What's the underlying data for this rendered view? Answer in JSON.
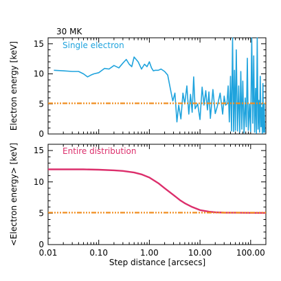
{
  "chart_data": [
    {
      "type": "line",
      "annotation": "30 MK",
      "label": "Single electron",
      "ylabel": "Electron energy [keV]",
      "xlabel": "",
      "xscale": "log",
      "xlim": [
        0.01,
        200
      ],
      "ylim": [
        0,
        16
      ],
      "yticks": [
        0,
        5,
        10,
        15
      ],
      "ytick_labels": [
        "0",
        "5",
        "10",
        "15"
      ],
      "series": [
        {
          "style": "solid",
          "color": "#1fa3dd",
          "x": [
            0.013,
            0.02,
            0.03,
            0.04,
            0.05,
            0.06,
            0.07,
            0.08,
            0.1,
            0.13,
            0.16,
            0.2,
            0.25,
            0.3,
            0.35,
            0.4,
            0.45,
            0.5,
            0.6,
            0.7,
            0.8,
            0.9,
            1.0,
            1.1,
            1.2,
            1.3,
            1.5,
            1.7,
            2.0,
            2.3,
            2.6,
            2.9,
            3.2,
            3.5,
            3.8,
            4.2,
            4.6,
            5.0,
            5.5,
            6.0,
            6.5,
            7.0,
            7.5,
            8.0,
            9.0,
            10.0,
            11.0,
            12.0,
            13.0,
            14.0,
            15.0,
            16.0,
            18.0,
            20.0,
            22.0,
            25.0,
            28.0,
            30.0,
            32.0,
            34.0,
            36.0,
            38.0,
            40.0,
            42.0,
            44.0,
            46.0,
            48.0,
            50.0,
            52.0,
            55.0,
            58.0,
            61.0,
            64.0,
            67.0,
            70.0,
            74.0,
            78.0,
            82.0,
            86.0,
            90.0,
            95.0,
            100.0,
            105.0,
            110.0,
            115.0,
            120.0,
            125.0,
            130.0,
            135.0,
            140.0,
            145.0,
            150.0,
            155.0,
            160.0,
            165.0,
            170.0,
            175.0,
            180.0,
            185.0,
            190.0
          ],
          "values": [
            10.6,
            10.5,
            10.4,
            10.4,
            10.0,
            9.5,
            9.8,
            10.0,
            10.2,
            10.9,
            10.8,
            11.4,
            11.0,
            11.8,
            12.4,
            11.6,
            11.2,
            12.8,
            12.0,
            10.8,
            11.6,
            11.2,
            12.0,
            11.0,
            10.5,
            10.6,
            10.6,
            10.8,
            10.4,
            9.8,
            7.5,
            5.5,
            6.8,
            2.0,
            4.8,
            2.5,
            6.8,
            5.0,
            8.0,
            3.3,
            6.6,
            3.6,
            9.5,
            4.2,
            5.0,
            2.4,
            7.8,
            4.8,
            7.2,
            4.0,
            7.0,
            2.6,
            7.4,
            3.4,
            4.6,
            6.8,
            3.3,
            6.3,
            4.8,
            5.0,
            8.0,
            2.0,
            9.6,
            0.5,
            16.0,
            0.4,
            10.6,
            0.6,
            14.0,
            0.5,
            8.0,
            0.3,
            10.4,
            0.8,
            8.8,
            0.2,
            6.0,
            1.2,
            12.6,
            0.6,
            5.0,
            0.4,
            16.0,
            1.8,
            13.0,
            0.3,
            7.6,
            0.1,
            16.0,
            0.8,
            5.6,
            0.3,
            9.6,
            1.2,
            4.4,
            0.1,
            8.4,
            0.3,
            5.0,
            0.2
          ]
        },
        {
          "style": "dash-dot",
          "color": "#f08d1f",
          "x": [
            0.01,
            200
          ],
          "values": [
            5.1,
            5.1
          ]
        }
      ]
    },
    {
      "type": "line",
      "label": "Entire distribution",
      "ylabel": "<Electron energy> [keV]",
      "xlabel": "Step distance [arcsecs]",
      "xscale": "log",
      "xlim": [
        0.01,
        200
      ],
      "ylim": [
        0,
        16
      ],
      "yticks": [
        0,
        5,
        10,
        15
      ],
      "ytick_labels": [
        "0",
        "5",
        "10",
        "15"
      ],
      "xticks": [
        0.01,
        0.1,
        1,
        10,
        100
      ],
      "xtick_labels": [
        "0.01",
        "0.10",
        "1.00",
        "10.00",
        "100.00"
      ],
      "series": [
        {
          "style": "solid",
          "color": "#dc2e6b",
          "x": [
            0.01,
            0.02,
            0.05,
            0.1,
            0.2,
            0.3,
            0.5,
            0.7,
            1.0,
            1.5,
            2.0,
            3.0,
            4.0,
            5.0,
            7.0,
            10.0,
            15.0,
            20.0,
            30.0,
            50.0,
            100.0,
            200.0
          ],
          "values": [
            12.0,
            12.0,
            12.0,
            11.95,
            11.85,
            11.75,
            11.5,
            11.2,
            10.7,
            9.8,
            9.0,
            7.9,
            7.1,
            6.6,
            6.0,
            5.5,
            5.25,
            5.15,
            5.1,
            5.08,
            5.06,
            5.05
          ]
        },
        {
          "style": "dash-dot",
          "color": "#f08d1f",
          "x": [
            0.01,
            200
          ],
          "values": [
            5.1,
            5.1
          ]
        }
      ]
    }
  ]
}
